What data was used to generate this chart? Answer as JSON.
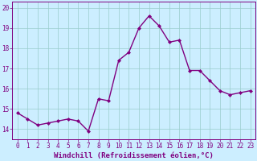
{
  "x": [
    0,
    1,
    2,
    3,
    4,
    5,
    6,
    7,
    8,
    9,
    10,
    11,
    12,
    13,
    14,
    15,
    16,
    17,
    18,
    19,
    20,
    21,
    22,
    23
  ],
  "y": [
    14.8,
    14.5,
    14.2,
    14.3,
    14.4,
    14.5,
    14.4,
    13.9,
    15.5,
    15.4,
    17.4,
    17.8,
    19.0,
    19.6,
    19.1,
    18.3,
    18.4,
    16.9,
    16.9,
    16.4,
    15.9,
    15.7,
    15.8,
    15.9
  ],
  "line_color": "#800080",
  "marker": "D",
  "marker_size": 2.0,
  "line_width": 1.0,
  "xlabel": "Windchill (Refroidissement éolien,°C)",
  "xlabel_fontsize": 6.5,
  "xlim": [
    -0.5,
    23.5
  ],
  "ylim": [
    13.5,
    20.3
  ],
  "yticks": [
    14,
    15,
    16,
    17,
    18,
    19,
    20
  ],
  "xticks": [
    0,
    1,
    2,
    3,
    4,
    5,
    6,
    7,
    8,
    9,
    10,
    11,
    12,
    13,
    14,
    15,
    16,
    17,
    18,
    19,
    20,
    21,
    22,
    23
  ],
  "grid_color": "#99cccc",
  "bg_color": "#cceeff",
  "tick_color": "#800080",
  "tick_fontsize": 5.5,
  "tick_label_color": "#800080"
}
